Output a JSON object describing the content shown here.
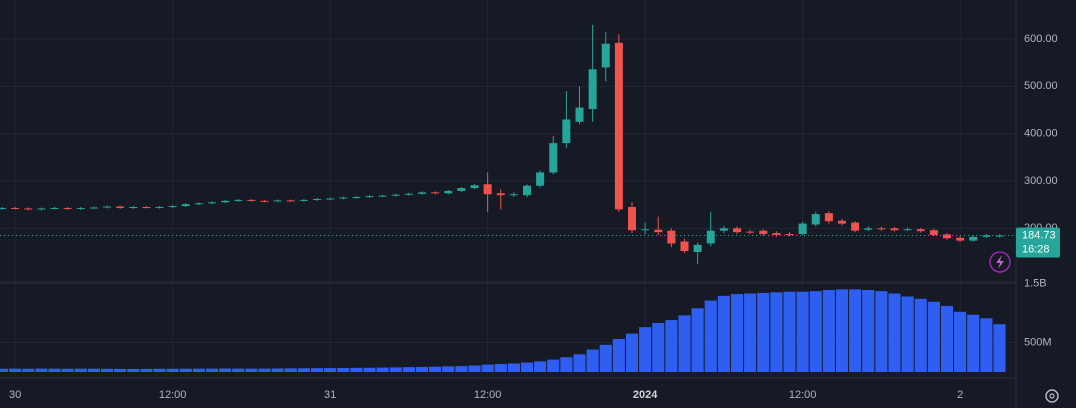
{
  "chart_data": {
    "type": "candlestick",
    "categories": [
      null,
      "30",
      null,
      null,
      null,
      null,
      null,
      null,
      null,
      null,
      null,
      null,
      null,
      "12:00",
      null,
      null,
      null,
      null,
      null,
      null,
      null,
      null,
      null,
      null,
      null,
      "31",
      null,
      null,
      null,
      null,
      null,
      null,
      null,
      null,
      null,
      null,
      null,
      "12:00",
      null,
      null,
      null,
      null,
      null,
      null,
      null,
      null,
      null,
      null,
      null,
      "2024",
      null,
      null,
      null,
      null,
      null,
      null,
      null,
      null,
      null,
      null,
      null,
      "12:00",
      null,
      null,
      null,
      null,
      null,
      null,
      null,
      null,
      null,
      null,
      null,
      "2",
      null,
      null,
      null
    ],
    "open": [
      241,
      243,
      242,
      240,
      242,
      243,
      241,
      243,
      244,
      246,
      243,
      245,
      244,
      245,
      247,
      251,
      253,
      255,
      258,
      260,
      258,
      257,
      259,
      258,
      260,
      262,
      263,
      265,
      266,
      268,
      269,
      271,
      273,
      276,
      274,
      279,
      285,
      293,
      274,
      270,
      270,
      290,
      318,
      380,
      425,
      452,
      540,
      592,
      245,
      196,
      197,
      195,
      172,
      150,
      168,
      195,
      200,
      193,
      195,
      190,
      188,
      188,
      208,
      232,
      216,
      212,
      197,
      200,
      200,
      197,
      198,
      196,
      187,
      180,
      174,
      182,
      184
    ],
    "high": [
      245,
      245,
      244,
      244,
      245,
      245,
      245,
      246,
      248,
      248,
      247,
      247,
      247,
      249,
      253,
      255,
      257,
      260,
      262,
      262,
      260,
      261,
      261,
      262,
      264,
      265,
      267,
      268,
      270,
      271,
      273,
      275,
      278,
      278,
      281,
      287,
      293,
      318,
      282,
      276,
      293,
      322,
      395,
      490,
      500,
      630,
      615,
      610,
      255,
      212,
      225,
      200,
      178,
      170,
      235,
      205,
      204,
      197,
      198,
      194,
      192,
      214,
      235,
      236,
      220,
      215,
      204,
      203,
      203,
      202,
      201,
      199,
      190,
      183,
      185,
      188,
      187
    ],
    "low": [
      239,
      240,
      238,
      238,
      240,
      239,
      239,
      241,
      242,
      241,
      241,
      242,
      242,
      243,
      245,
      249,
      251,
      253,
      256,
      256,
      255,
      255,
      256,
      256,
      258,
      260,
      261,
      263,
      264,
      266,
      267,
      269,
      271,
      272,
      272,
      277,
      283,
      234,
      240,
      266,
      266,
      286,
      314,
      370,
      420,
      425,
      510,
      235,
      190,
      188,
      186,
      160,
      148,
      125,
      162,
      190,
      188,
      188,
      184,
      182,
      183,
      185,
      204,
      210,
      206,
      192,
      194,
      195,
      193,
      194,
      191,
      183,
      176,
      171,
      172,
      180,
      181
    ],
    "close": [
      243,
      242,
      240,
      242,
      243,
      241,
      243,
      244,
      246,
      243,
      245,
      244,
      245,
      247,
      251,
      253,
      255,
      258,
      260,
      258,
      257,
      259,
      258,
      260,
      262,
      263,
      265,
      266,
      268,
      269,
      271,
      273,
      276,
      274,
      279,
      285,
      291,
      272,
      270,
      272,
      290,
      318,
      380,
      430,
      455,
      536,
      590,
      240,
      196,
      198,
      192,
      168,
      152,
      165,
      195,
      200,
      192,
      192,
      188,
      186,
      186,
      210,
      230,
      215,
      210,
      195,
      200,
      198,
      196,
      198,
      194,
      186,
      179,
      174,
      182,
      185,
      184.73
    ],
    "volume": [
      55000000.0,
      57000000.0,
      55000000.0,
      58000000.0,
      56000000.0,
      55000000.0,
      57000000.0,
      56000000.0,
      54000000.0,
      53000000.0,
      52000000.0,
      53000000.0,
      54000000.0,
      55000000.0,
      56000000.0,
      57000000.0,
      58000000.0,
      60000000.0,
      58000000.0,
      57000000.0,
      58000000.0,
      60000000.0,
      62000000.0,
      63000000.0,
      65000000.0,
      66000000.0,
      68000000.0,
      70000000.0,
      72000000.0,
      75000000.0,
      78000000.0,
      82000000.0,
      86000000.0,
      90000000.0,
      95000000.0,
      100000000.0,
      110000000.0,
      125000000.0,
      135000000.0,
      145000000.0,
      160000000.0,
      180000000.0,
      210000000.0,
      250000000.0,
      300000000.0,
      380000000.0,
      460000000.0,
      560000000.0,
      650000000.0,
      760000000.0,
      830000000.0,
      880000000.0,
      960000000.0,
      1080000000.0,
      1210000000.0,
      1290000000.0,
      1320000000.0,
      1330000000.0,
      1340000000.0,
      1350000000.0,
      1360000000.0,
      1360000000.0,
      1370000000.0,
      1390000000.0,
      1400000000.0,
      1400000000.0,
      1390000000.0,
      1370000000.0,
      1330000000.0,
      1280000000.0,
      1240000000.0,
      1190000000.0,
      1120000000.0,
      1020000000.0,
      970000000.0,
      910000000.0,
      810000000.0
    ],
    "up_color": "#26a69a",
    "down_color": "#ef5350",
    "volume_color": "#2f5ff0",
    "ylim": [
      90.8,
      682.4
    ],
    "yticks": [
      {
        "value": 200,
        "label": "200.00"
      },
      {
        "value": 300,
        "label": "300.00"
      },
      {
        "value": 400,
        "label": "400.00"
      },
      {
        "value": 500,
        "label": "500.00"
      },
      {
        "value": 600,
        "label": "600.00"
      }
    ],
    "volume_ylim": [
      0,
      1525000000.0
    ],
    "volume_yticks": [
      {
        "value": 500000000.0,
        "label": "500M"
      },
      {
        "value": 1500000000.0,
        "label": "1.5B"
      }
    ],
    "last_price": 184.73,
    "countdown": "16:28",
    "grid": true
  }
}
